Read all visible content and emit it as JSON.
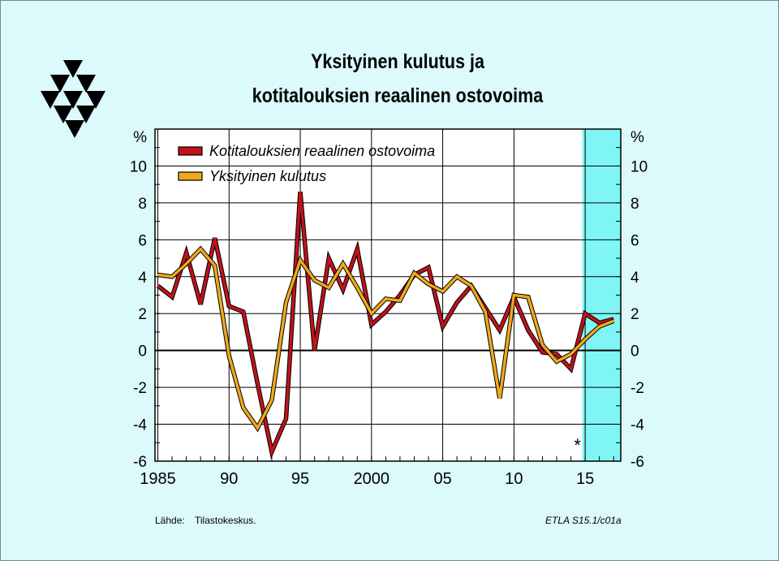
{
  "title_line1": "Yksityinen kulutus ja",
  "title_line2": "kotitalouksien reaalinen ostovoima",
  "source_label": "Lähde:",
  "source_value": "Tilastokeskus.",
  "code": "ETLA S15.1/c01a",
  "forecast_marker": "*",
  "colors": {
    "background": "#dcf9fb",
    "forecast": "#7ff5f6",
    "series1": "#c0121b",
    "series2": "#f0a81c"
  },
  "chart_data": {
    "type": "line",
    "title": "Yksityinen kulutus ja kotitalouksien reaalinen ostovoima",
    "ylabel_left": "%",
    "ylabel_right": "%",
    "xlim": [
      1984.8,
      2017.5
    ],
    "ylim": [
      -6,
      12
    ],
    "y_ticks": [
      -6,
      -4,
      -2,
      0,
      2,
      4,
      6,
      8,
      10
    ],
    "x_ticks": [
      {
        "value": 1985,
        "label": "1985"
      },
      {
        "value": 1990,
        "label": "90"
      },
      {
        "value": 1995,
        "label": "95"
      },
      {
        "value": 2000,
        "label": "2000"
      },
      {
        "value": 2005,
        "label": "05"
      },
      {
        "value": 2010,
        "label": "10"
      },
      {
        "value": 2015,
        "label": "15"
      }
    ],
    "forecast_period": [
      2014.8,
      2017.5
    ],
    "legend_position": "top-left",
    "x": [
      1985,
      1986,
      1987,
      1988,
      1989,
      1990,
      1991,
      1992,
      1993,
      1994,
      1995,
      1996,
      1997,
      1998,
      1999,
      2000,
      2001,
      2002,
      2003,
      2004,
      2005,
      2006,
      2007,
      2008,
      2009,
      2010,
      2011,
      2012,
      2013,
      2014,
      2015,
      2016,
      2017
    ],
    "series": [
      {
        "name": "Kotitalouksien reaalinen ostovoima",
        "color": "#c0121b",
        "values": [
          3.5,
          2.9,
          5.3,
          2.5,
          6.1,
          2.4,
          2.1,
          -1.8,
          -5.5,
          -3.7,
          8.6,
          0.0,
          5.0,
          3.3,
          5.5,
          1.4,
          2.1,
          3.0,
          4.1,
          4.5,
          1.3,
          2.6,
          3.5,
          2.3,
          1.1,
          2.9,
          1.1,
          -0.1,
          -0.2,
          -1.0,
          2.0,
          1.5,
          1.7
        ]
      },
      {
        "name": "Yksityinen kulutus",
        "color": "#f0a81c",
        "values": [
          4.1,
          4.0,
          4.7,
          5.5,
          4.6,
          -0.3,
          -3.1,
          -4.2,
          -2.7,
          2.6,
          4.9,
          3.8,
          3.4,
          4.7,
          3.4,
          2.0,
          2.8,
          2.7,
          4.2,
          3.6,
          3.2,
          4.0,
          3.5,
          2.1,
          -2.6,
          3.0,
          2.9,
          0.3,
          -0.6,
          -0.2,
          0.6,
          1.3,
          1.6
        ]
      }
    ]
  }
}
